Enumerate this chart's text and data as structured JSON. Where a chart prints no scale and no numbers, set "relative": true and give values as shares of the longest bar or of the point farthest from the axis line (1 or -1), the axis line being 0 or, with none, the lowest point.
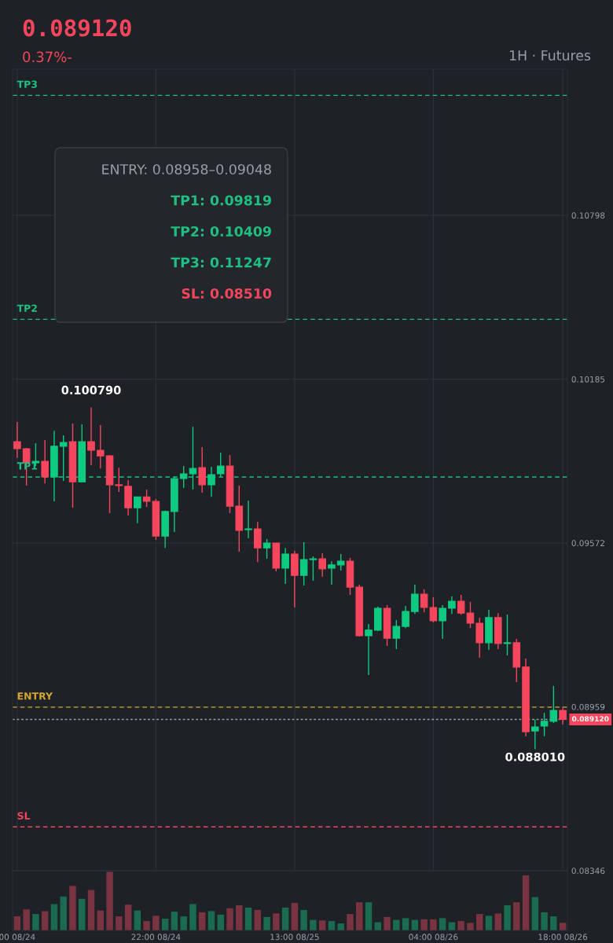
{
  "chart_data": [
    {
      "type": "candlestick",
      "title": "0.089120",
      "subtitle": "0.37%-",
      "annotations": [
        "1H · Futures",
        "ENTRY: 0.08958–0.09048",
        "TP1: 0.09819",
        "TP2: 0.10409",
        "TP3: 0.11247",
        "SL: 0.08510",
        {
          "text": "0.100790",
          "y": 0.10079
        },
        {
          "text": "0.088010",
          "y": 0.08801
        }
      ],
      "categories": [
        null,
        null,
        null,
        null,
        null,
        null,
        null,
        null,
        null,
        null,
        null,
        null,
        null,
        null,
        null,
        null,
        null,
        null,
        null,
        null,
        null,
        null,
        null,
        null,
        null,
        null,
        null,
        null,
        null,
        null,
        null,
        null,
        null,
        null,
        null,
        null,
        null,
        null,
        null,
        null,
        null,
        null,
        null,
        null,
        null,
        null,
        null,
        null,
        null,
        null,
        null,
        null,
        null,
        null,
        null,
        null,
        null,
        null,
        null,
        null
      ],
      "ohlc": [
        [
          0.09951,
          0.10025,
          0.0989,
          0.09925
        ],
        [
          0.09925,
          0.09928,
          0.09787,
          0.09872
        ],
        [
          0.09872,
          0.09945,
          0.0986,
          0.09878
        ],
        [
          0.09878,
          0.09957,
          0.09795,
          0.09819
        ],
        [
          0.09819,
          0.09992,
          0.09728,
          0.09934
        ],
        [
          0.09934,
          0.09975,
          0.09804,
          0.09948
        ],
        [
          0.09951,
          0.10019,
          0.09704,
          0.09801
        ],
        [
          0.09801,
          0.10016,
          0.09801,
          0.09951
        ],
        [
          0.09951,
          0.10079,
          0.09863,
          0.09919
        ],
        [
          0.09919,
          0.10013,
          0.09851,
          0.09898
        ],
        [
          0.09898,
          0.09901,
          0.09684,
          0.0979
        ],
        [
          0.0979,
          0.09854,
          0.09763,
          0.09787
        ],
        [
          0.09784,
          0.09807,
          0.09675,
          0.09704
        ],
        [
          0.09704,
          0.09745,
          0.09646,
          0.09745
        ],
        [
          0.09745,
          0.09772,
          0.09707,
          0.09728
        ],
        [
          0.09728,
          0.09737,
          0.09584,
          0.09598
        ],
        [
          0.09598,
          0.09693,
          0.09554,
          0.0969
        ],
        [
          0.0969,
          0.09822,
          0.09613,
          0.09813
        ],
        [
          0.09813,
          0.0986,
          0.09778,
          0.09831
        ],
        [
          0.09831,
          0.10007,
          0.09772,
          0.09851
        ],
        [
          0.09854,
          0.09931,
          0.0976,
          0.0979
        ],
        [
          0.0979,
          0.09857,
          0.09745,
          0.09828
        ],
        [
          0.09831,
          0.0991,
          0.09819,
          0.0986
        ],
        [
          0.0986,
          0.09901,
          0.09684,
          0.0971
        ],
        [
          0.0971,
          0.09787,
          0.0954,
          0.09619
        ],
        [
          0.09622,
          0.09731,
          0.0959,
          0.09625
        ],
        [
          0.09625,
          0.09651,
          0.09501,
          0.09554
        ],
        [
          0.09554,
          0.09587,
          0.09513,
          0.09572
        ],
        [
          0.09572,
          0.09572,
          0.09466,
          0.09478
        ],
        [
          0.09478,
          0.09554,
          0.09419,
          0.09531
        ],
        [
          0.09531,
          0.09543,
          0.09331,
          0.09451
        ],
        [
          0.09451,
          0.09575,
          0.09413,
          0.0951
        ],
        [
          0.0951,
          0.09522,
          0.09431,
          0.09513
        ],
        [
          0.09513,
          0.09534,
          0.09446,
          0.09475
        ],
        [
          0.09478,
          0.09504,
          0.09416,
          0.0949
        ],
        [
          0.0949,
          0.09531,
          0.09469,
          0.09504
        ],
        [
          0.09504,
          0.09516,
          0.09378,
          0.09407
        ],
        [
          0.09407,
          0.09416,
          0.09222,
          0.09225
        ],
        [
          0.09225,
          0.09269,
          0.09078,
          0.09246
        ],
        [
          0.09246,
          0.09334,
          0.09243,
          0.09328
        ],
        [
          0.09328,
          0.0934,
          0.09187,
          0.09216
        ],
        [
          0.09216,
          0.09284,
          0.09175,
          0.0926
        ],
        [
          0.0926,
          0.09337,
          0.09254,
          0.09316
        ],
        [
          0.09316,
          0.09416,
          0.09307,
          0.09381
        ],
        [
          0.09381,
          0.09399,
          0.09313,
          0.09331
        ],
        [
          0.09331,
          0.09369,
          0.09275,
          0.09281
        ],
        [
          0.09281,
          0.0934,
          0.09213,
          0.09328
        ],
        [
          0.09328,
          0.09372,
          0.09307,
          0.09354
        ],
        [
          0.09354,
          0.09378,
          0.09304,
          0.0931
        ],
        [
          0.0931,
          0.09352,
          0.09254,
          0.09272
        ],
        [
          0.09272,
          0.09293,
          0.09143,
          0.09199
        ],
        [
          0.09199,
          0.09322,
          0.09172,
          0.09293
        ],
        [
          0.09293,
          0.0931,
          0.09175,
          0.09196
        ],
        [
          0.09196,
          0.09304,
          0.09152,
          0.09199
        ],
        [
          0.09199,
          0.09213,
          0.09052,
          0.09108
        ],
        [
          0.09108,
          0.0914,
          0.08849,
          0.08866
        ],
        [
          0.08869,
          0.08911,
          0.08801,
          0.08884
        ],
        [
          0.08887,
          0.08937,
          0.08849,
          0.08905
        ],
        [
          0.08905,
          0.09037,
          0.08899,
          0.08946
        ],
        [
          0.08946,
          0.08958,
          0.08893,
          0.08912
        ]
      ],
      "colors": [
        "#f6465d",
        "#f6465d",
        "#0ecb81",
        "#f6465d",
        "#0ecb81",
        "#0ecb81",
        "#f6465d",
        "#0ecb81",
        "#f6465d",
        "#f6465d",
        "#f6465d",
        "#f6465d",
        "#f6465d",
        "#0ecb81",
        "#f6465d",
        "#f6465d",
        "#0ecb81",
        "#0ecb81",
        "#0ecb81",
        "#0ecb81",
        "#f6465d",
        "#0ecb81",
        "#0ecb81",
        "#f6465d",
        "#f6465d",
        "#0ecb81",
        "#f6465d",
        "#0ecb81",
        "#f6465d",
        "#0ecb81",
        "#f6465d",
        "#0ecb81",
        "#0ecb81",
        "#f6465d",
        "#0ecb81",
        "#0ecb81",
        "#f6465d",
        "#f6465d",
        "#0ecb81",
        "#0ecb81",
        "#f6465d",
        "#0ecb81",
        "#0ecb81",
        "#0ecb81",
        "#f6465d",
        "#f6465d",
        "#0ecb81",
        "#0ecb81",
        "#f6465d",
        "#f6465d",
        "#f6465d",
        "#0ecb81",
        "#f6465d",
        "#0ecb81",
        "#f6465d",
        "#f6465d",
        "#0ecb81",
        "#0ecb81",
        "#0ecb81",
        "#f6465d"
      ],
      "ylim": [
        0.08346,
        0.11345
      ],
      "yticks": [
        0.08346,
        0.08959,
        0.09572,
        0.10185,
        0.10798
      ],
      "ref_lines": [
        {
          "axis": "y",
          "value": 0.11247,
          "label": "TP3",
          "color": "#1fbf83",
          "line_style": "dashed"
        },
        {
          "axis": "y",
          "value": 0.10409,
          "label": "TP2",
          "color": "#1fbf83",
          "line_style": "dashed"
        },
        {
          "axis": "y",
          "value": 0.09819,
          "label": "TP1",
          "color": "#1fbf83",
          "line_style": "dashed"
        },
        {
          "axis": "y",
          "value": 0.08958,
          "label": "ENTRY",
          "color": "#d4a72c",
          "line_style": "dashed"
        },
        {
          "axis": "y",
          "value": 0.08912,
          "label": "0.089120",
          "color": "#9aa0a6",
          "line_style": "dotted"
        },
        {
          "axis": "y",
          "value": 0.0851,
          "label": "SL",
          "color": "#f6465d",
          "line_style": "dashed"
        }
      ],
      "grid": true,
      "tick_labels": "y"
    },
    {
      "type": "bar",
      "relative": true,
      "categories": [
        "00 08/24",
        null,
        null,
        null,
        null,
        null,
        null,
        null,
        null,
        null,
        null,
        null,
        null,
        null,
        null,
        "22:00 08/24",
        null,
        null,
        null,
        null,
        null,
        null,
        null,
        null,
        null,
        null,
        null,
        null,
        null,
        null,
        "13:00 08/25",
        null,
        null,
        null,
        null,
        null,
        null,
        null,
        null,
        null,
        null,
        null,
        null,
        null,
        null,
        "04:00 08/26",
        null,
        null,
        null,
        null,
        null,
        null,
        null,
        null,
        null,
        null,
        null,
        null,
        null,
        "18:00 08/26"
      ],
      "values": [
        0.24,
        0.36,
        0.28,
        0.33,
        0.45,
        0.58,
        0.76,
        0.54,
        0.69,
        0.34,
        1,
        0.24,
        0.44,
        0.34,
        0.16,
        0.25,
        0.2,
        0.32,
        0.24,
        0.45,
        0.31,
        0.33,
        0.27,
        0.38,
        0.43,
        0.39,
        0.35,
        0.23,
        0.29,
        0.39,
        0.47,
        0.35,
        0.18,
        0.17,
        0.16,
        0.12,
        0.28,
        0.48,
        0.48,
        0.14,
        0.23,
        0.18,
        0.21,
        0.18,
        0.19,
        0.19,
        0.21,
        0.14,
        0.16,
        0.13,
        0.28,
        0.25,
        0.29,
        0.43,
        0.48,
        0.94,
        0.57,
        0.31,
        0.24,
        0.13
      ],
      "colors": [
        "#7a3340",
        "#7a3340",
        "#1a6b50",
        "#7a3340",
        "#1a6b50",
        "#1a6b50",
        "#7a3340",
        "#1a6b50",
        "#7a3340",
        "#7a3340",
        "#7a3340",
        "#7a3340",
        "#7a3340",
        "#1a6b50",
        "#7a3340",
        "#7a3340",
        "#1a6b50",
        "#1a6b50",
        "#1a6b50",
        "#1a6b50",
        "#7a3340",
        "#1a6b50",
        "#1a6b50",
        "#7a3340",
        "#7a3340",
        "#1a6b50",
        "#7a3340",
        "#1a6b50",
        "#7a3340",
        "#1a6b50",
        "#7a3340",
        "#1a6b50",
        "#1a6b50",
        "#7a3340",
        "#1a6b50",
        "#1a6b50",
        "#7a3340",
        "#7a3340",
        "#1a6b50",
        "#1a6b50",
        "#7a3340",
        "#1a6b50",
        "#1a6b50",
        "#1a6b50",
        "#7a3340",
        "#7a3340",
        "#1a6b50",
        "#1a6b50",
        "#7a3340",
        "#7a3340",
        "#7a3340",
        "#1a6b50",
        "#7a3340",
        "#1a6b50",
        "#7a3340",
        "#7a3340",
        "#1a6b50",
        "#1a6b50",
        "#1a6b50",
        "#7a3340"
      ],
      "tick_labels": "x"
    }
  ]
}
